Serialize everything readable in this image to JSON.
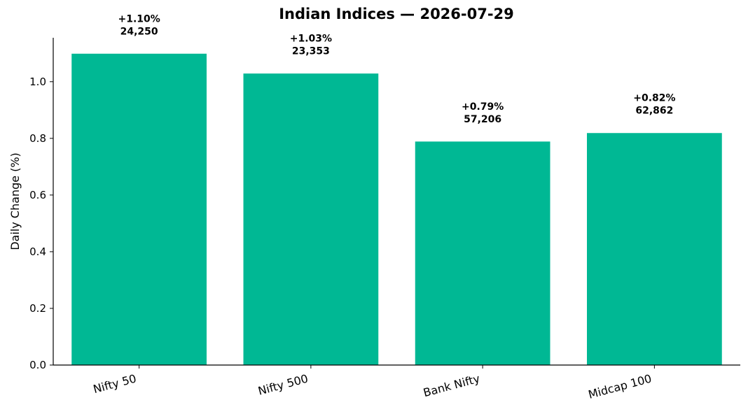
{
  "chart_data": {
    "type": "bar",
    "title": "Indian Indices — 2026-07-29",
    "xlabel": "",
    "ylabel": "Daily Change (%)",
    "categories": [
      "Nifty 50",
      "Nifty 500",
      "Bank Nifty",
      "Midcap 100"
    ],
    "values": [
      1.1,
      1.03,
      0.79,
      0.82
    ],
    "change_labels": [
      "+1.10%",
      "+1.03%",
      "+0.79%",
      "+0.82%"
    ],
    "level_labels": [
      "24,250",
      "23,353",
      "57,206",
      "62,862"
    ],
    "ylim": [
      0,
      1.155
    ],
    "yticks": [
      "0.0",
      "0.2",
      "0.4",
      "0.6",
      "0.8",
      "1.0"
    ],
    "ytick_values": [
      0,
      0.2,
      0.4,
      0.6,
      0.8,
      1.0
    ],
    "bar_color": "#00b894",
    "grid": false,
    "legend": "none"
  }
}
